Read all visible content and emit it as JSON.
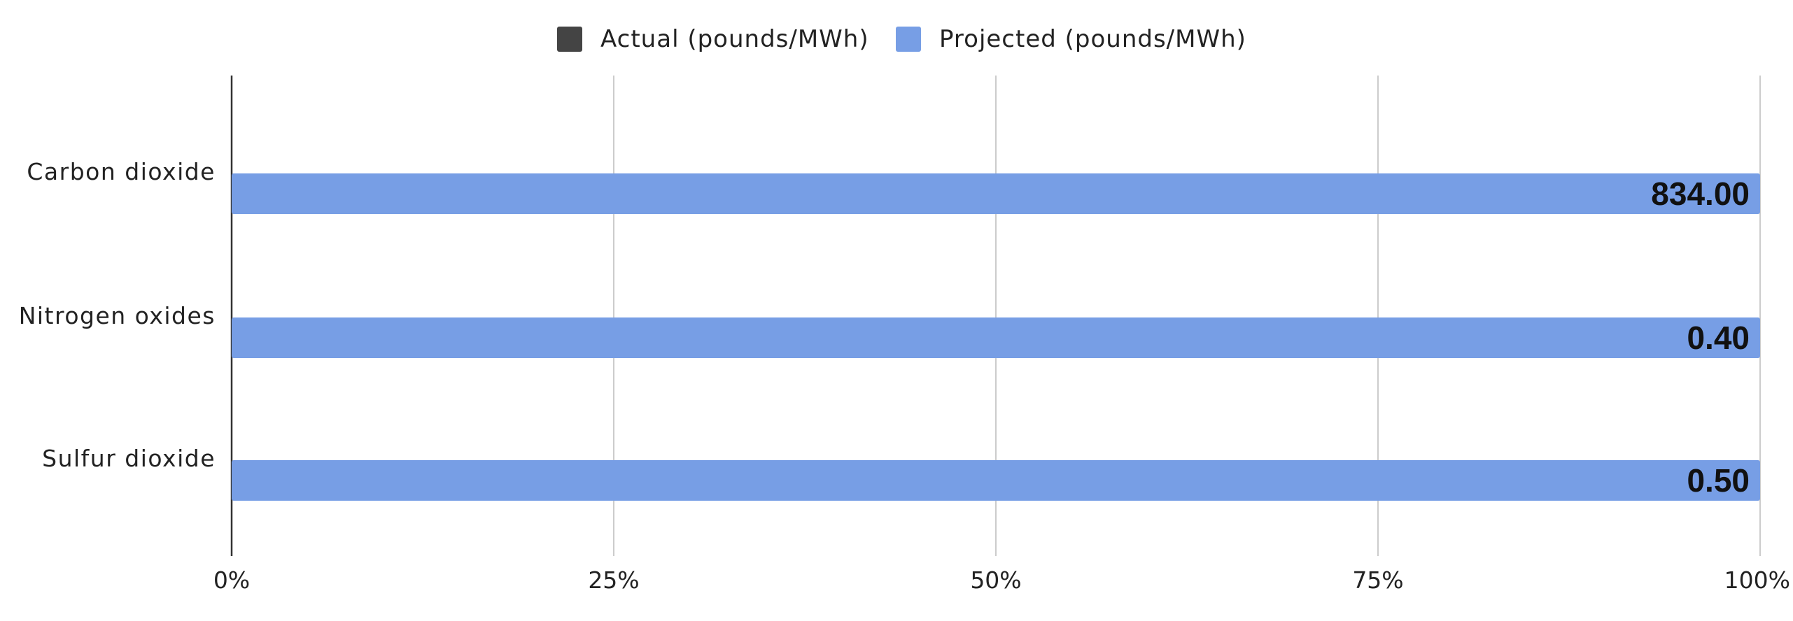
{
  "chart_data": {
    "type": "bar",
    "orientation": "horizontal",
    "stacked": "percent",
    "categories": [
      "Carbon dioxide",
      "Nitrogen oxides",
      "Sulfur dioxide"
    ],
    "series": [
      {
        "name": "Actual (pounds/MWh)",
        "color": "#444444",
        "values": [
          0,
          0,
          0
        ]
      },
      {
        "name": "Projected (pounds/MWh)",
        "color": "#779ee5",
        "values": [
          834.0,
          0.4,
          0.5
        ]
      }
    ],
    "data_labels": [
      "834.00",
      "0.40",
      "0.50"
    ],
    "x_ticks": [
      "0%",
      "25%",
      "50%",
      "75%",
      "100%"
    ],
    "xlim": [
      0,
      100
    ],
    "grid": true,
    "legend_position": "top-center",
    "title": "",
    "xlabel": "",
    "ylabel": ""
  }
}
